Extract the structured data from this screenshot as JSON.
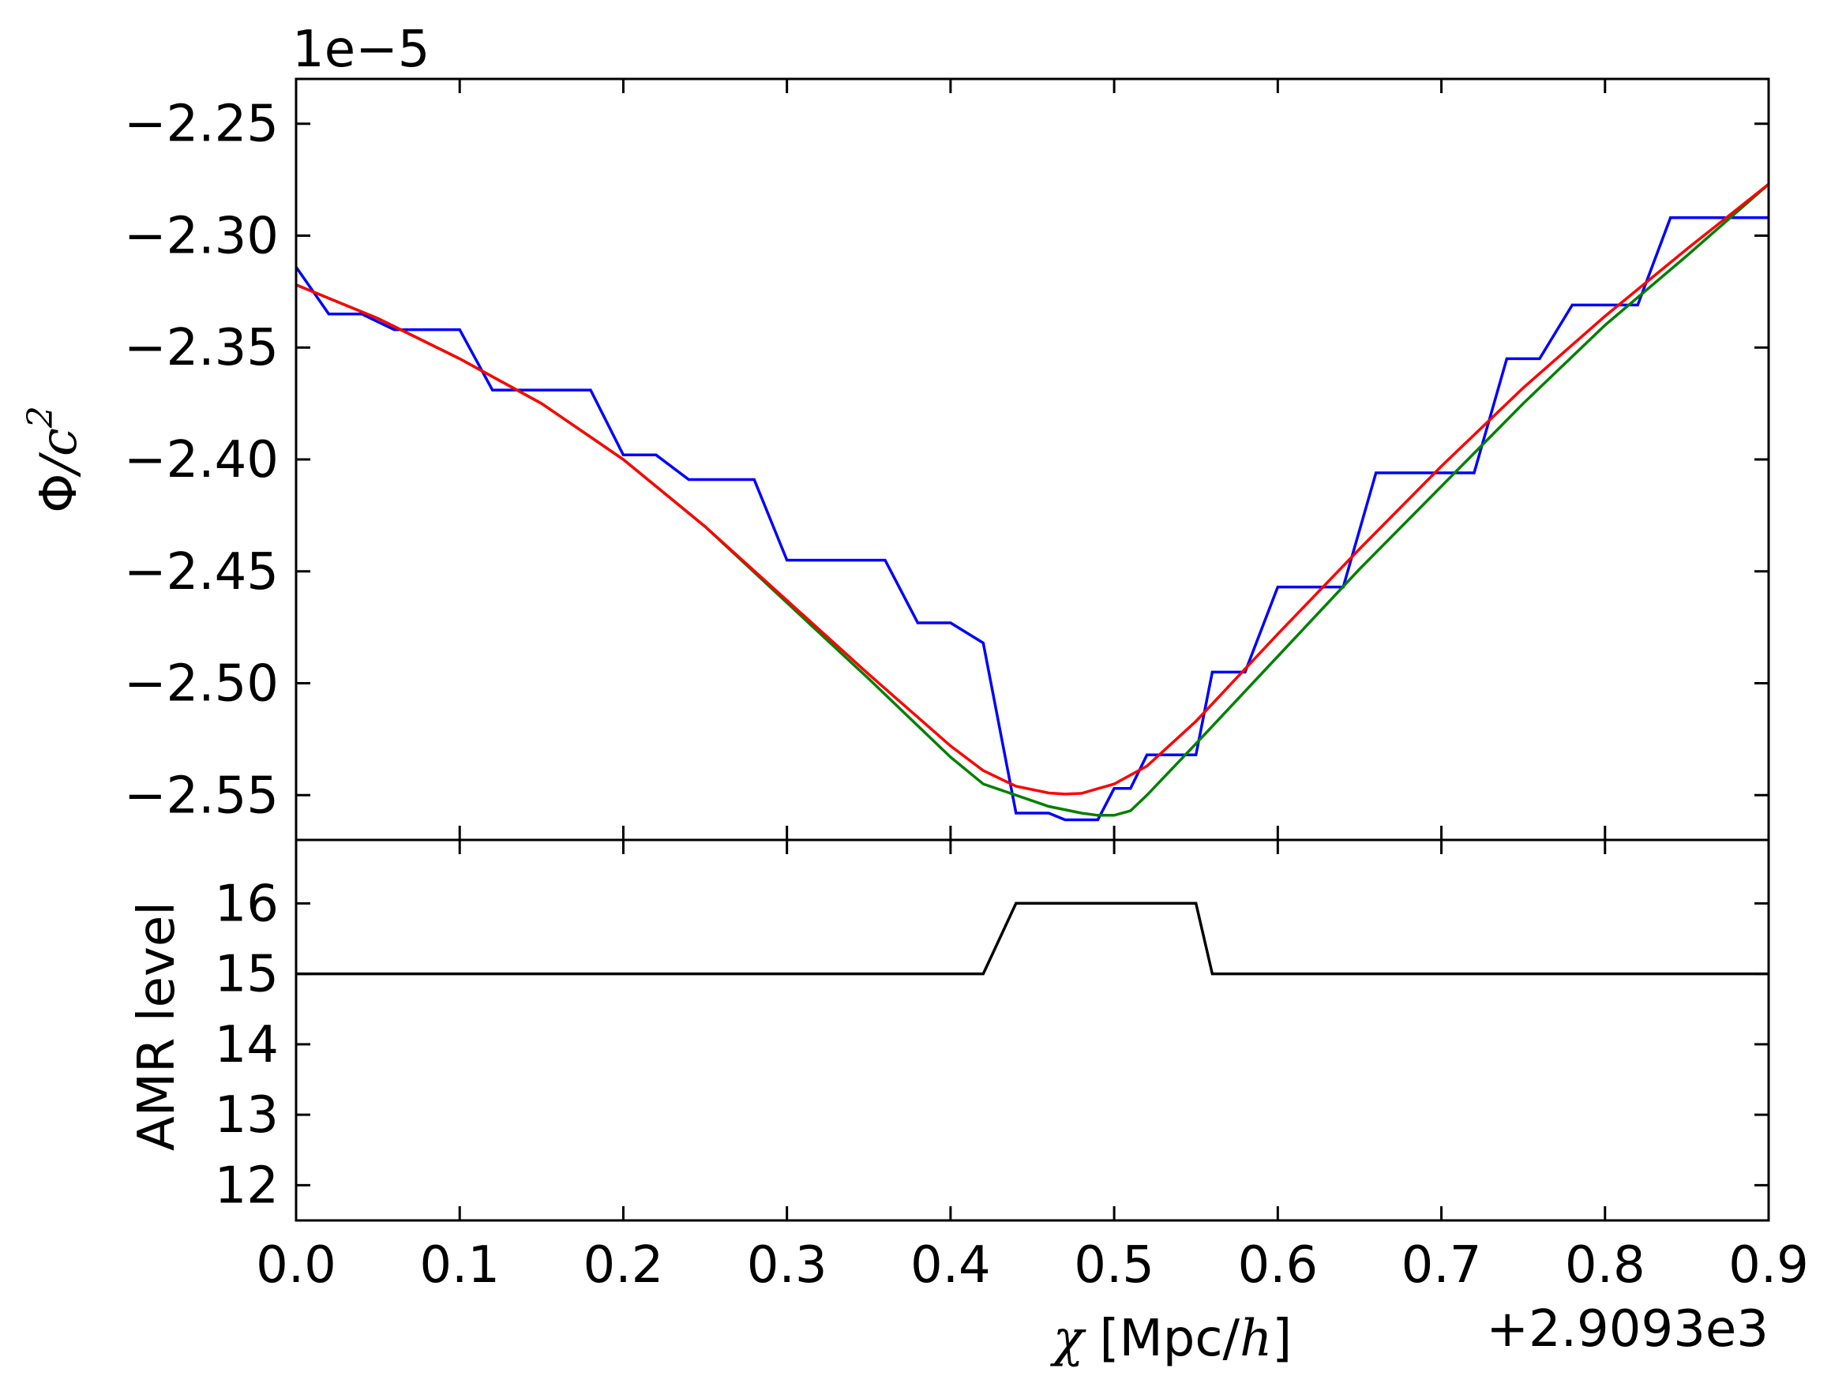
{
  "chart_data": [
    {
      "type": "line",
      "panel": "top",
      "ylabel_symbol": "Φ",
      "ylabel_sep": "/",
      "ylabel_var": "c",
      "ylabel_exp": "2",
      "offset_text": "1e−5",
      "ylim": [
        -2.57,
        -2.23
      ],
      "yticks": [
        -2.55,
        -2.5,
        -2.45,
        -2.4,
        -2.35,
        -2.3,
        -2.25
      ],
      "ytick_labels": [
        "−2.55",
        "−2.50",
        "−2.45",
        "−2.40",
        "−2.35",
        "−2.30",
        "−2.25"
      ],
      "xlim": [
        0.0,
        0.9
      ],
      "grid": false,
      "legend": "none",
      "series": [
        {
          "color": "#0000ff",
          "x": [
            0.0,
            0.02,
            0.04,
            0.06,
            0.08,
            0.1,
            0.12,
            0.14,
            0.16,
            0.18,
            0.2,
            0.22,
            0.24,
            0.26,
            0.28,
            0.3,
            0.32,
            0.34,
            0.36,
            0.38,
            0.4,
            0.42,
            0.44,
            0.46,
            0.47,
            0.49,
            0.5,
            0.51,
            0.52,
            0.54,
            0.55,
            0.56,
            0.57,
            0.58,
            0.6,
            0.62,
            0.64,
            0.66,
            0.68,
            0.7,
            0.72,
            0.74,
            0.76,
            0.78,
            0.8,
            0.82,
            0.84,
            0.86,
            0.88,
            0.9
          ],
          "y": [
            -2.314,
            -2.335,
            -2.335,
            -2.342,
            -2.342,
            -2.342,
            -2.369,
            -2.369,
            -2.369,
            -2.369,
            -2.398,
            -2.398,
            -2.409,
            -2.409,
            -2.409,
            -2.445,
            -2.445,
            -2.445,
            -2.445,
            -2.473,
            -2.473,
            -2.482,
            -2.558,
            -2.558,
            -2.561,
            -2.561,
            -2.547,
            -2.547,
            -2.532,
            -2.532,
            -2.532,
            -2.495,
            -2.495,
            -2.495,
            -2.457,
            -2.457,
            -2.457,
            -2.406,
            -2.406,
            -2.406,
            -2.406,
            -2.355,
            -2.355,
            -2.331,
            -2.331,
            -2.331,
            -2.292,
            -2.292,
            -2.292,
            -2.292
          ]
        },
        {
          "color": "#008000",
          "x": [
            0.0,
            0.05,
            0.1,
            0.15,
            0.2,
            0.25,
            0.3,
            0.35,
            0.4,
            0.42,
            0.44,
            0.46,
            0.48,
            0.49,
            0.5,
            0.51,
            0.52,
            0.55,
            0.6,
            0.65,
            0.7,
            0.75,
            0.8,
            0.85,
            0.9
          ],
          "y": [
            -2.322,
            -2.337,
            -2.355,
            -2.375,
            -2.4,
            -2.43,
            -2.464,
            -2.498,
            -2.533,
            -2.545,
            -2.55,
            -2.555,
            -2.558,
            -2.559,
            -2.559,
            -2.557,
            -2.55,
            -2.527,
            -2.488,
            -2.449,
            -2.412,
            -2.375,
            -2.34,
            -2.309,
            -2.277
          ]
        },
        {
          "color": "#ff0000",
          "x": [
            0.0,
            0.05,
            0.1,
            0.15,
            0.2,
            0.25,
            0.3,
            0.35,
            0.4,
            0.42,
            0.44,
            0.46,
            0.47,
            0.48,
            0.5,
            0.52,
            0.55,
            0.6,
            0.65,
            0.7,
            0.75,
            0.8,
            0.85,
            0.9
          ],
          "y": [
            -2.322,
            -2.337,
            -2.355,
            -2.375,
            -2.4,
            -2.43,
            -2.463,
            -2.496,
            -2.528,
            -2.539,
            -2.546,
            -2.549,
            -2.5495,
            -2.5492,
            -2.545,
            -2.537,
            -2.517,
            -2.478,
            -2.44,
            -2.403,
            -2.368,
            -2.336,
            -2.306,
            -2.277
          ]
        }
      ]
    },
    {
      "type": "line",
      "panel": "bottom",
      "ylabel": "AMR level",
      "ylim": [
        11.5,
        16.9
      ],
      "yticks": [
        12,
        13,
        14,
        15,
        16
      ],
      "ytick_labels": [
        "12",
        "13",
        "14",
        "15",
        "16"
      ],
      "xlim": [
        0.0,
        0.9
      ],
      "xticks": [
        0.0,
        0.1,
        0.2,
        0.3,
        0.4,
        0.5,
        0.6,
        0.7,
        0.8,
        0.9
      ],
      "xtick_labels": [
        "0.0",
        "0.1",
        "0.2",
        "0.3",
        "0.4",
        "0.5",
        "0.6",
        "0.7",
        "0.8",
        "0.9"
      ],
      "xlabel_var": "χ",
      "xlabel_open": "[Mpc/",
      "xlabel_h": "h",
      "xlabel_close": "]",
      "offset_text": "+2.9093e3",
      "grid": false,
      "legend": "none",
      "series": [
        {
          "color": "#000000",
          "x": [
            0.0,
            0.42,
            0.44,
            0.55,
            0.56,
            0.9
          ],
          "y": [
            15,
            15,
            16,
            16,
            15,
            15
          ]
        }
      ]
    }
  ]
}
